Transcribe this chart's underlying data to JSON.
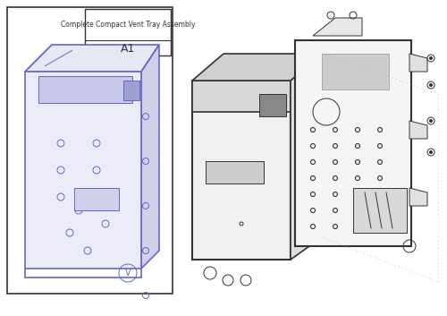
{
  "title": "Complete Compact Vent Tray Assembly",
  "part_id": "A1",
  "bg_color": "#ffffff",
  "line_color_blue": "#6666cc",
  "line_color_dark": "#333333",
  "line_color_gray": "#aaaaaa",
  "label_box_color": "#ffffff",
  "label_border_color": "#333333"
}
